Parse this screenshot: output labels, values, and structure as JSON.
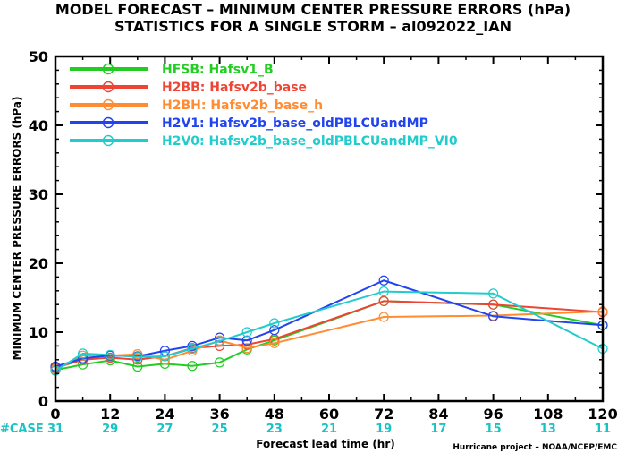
{
  "title_line1": "MODEL FORECAST – MINIMUM CENTER PRESSURE ERRORS (hPa)",
  "title_line2": "STATISTICS FOR A SINGLE STORM – al092022_IAN",
  "case_label": "#CASE",
  "credit": "Hurricane project – NOAA/NCEP/EMC",
  "chart_data": {
    "type": "line",
    "title": "MODEL FORECAST – MINIMUM CENTER PRESSURE ERRORS (hPa)",
    "subtitle": "STATISTICS FOR A SINGLE STORM – al092022_IAN",
    "xlabel": "Forecast lead time (hr)",
    "ylabel": "MINIMUM CENTER PRESSURE ERRORS (hPa)",
    "xlim": [
      0,
      120
    ],
    "ylim": [
      0,
      50
    ],
    "x_ticks": [
      0,
      12,
      24,
      36,
      48,
      60,
      72,
      84,
      96,
      108,
      120
    ],
    "y_ticks": [
      0,
      10,
      20,
      30,
      40,
      50
    ],
    "legend_position": "top-left",
    "case_counts": [
      31,
      29,
      27,
      25,
      23,
      21,
      19,
      17,
      15,
      13,
      11
    ],
    "series": [
      {
        "id": "HFSB",
        "label": "HFSB: Hafsv1_B",
        "color": "#22cc22",
        "x": [
          0,
          6,
          12,
          18,
          24,
          30,
          36,
          42,
          48,
          72,
          96,
          120
        ],
        "y": [
          4.5,
          5.3,
          5.9,
          5.0,
          5.4,
          5.1,
          5.6,
          7.5,
          8.8,
          14.5,
          14.0,
          11.0
        ]
      },
      {
        "id": "H2BB",
        "label": "H2BB: Hafsv2b_base",
        "color": "#ee4433",
        "x": [
          0,
          6,
          12,
          18,
          24,
          30,
          36,
          42,
          48,
          72,
          96,
          120
        ],
        "y": [
          4.8,
          6.0,
          6.3,
          6.0,
          6.5,
          7.7,
          8.0,
          8.2,
          9.0,
          14.5,
          14.0,
          12.9
        ]
      },
      {
        "id": "H2BH",
        "label": "H2BH: Hafsv2b_base_h",
        "color": "#ff8c33",
        "x": [
          0,
          6,
          12,
          18,
          24,
          30,
          36,
          42,
          48,
          72,
          96,
          120
        ],
        "y": [
          4.6,
          6.6,
          6.6,
          6.8,
          6.0,
          7.3,
          8.8,
          7.7,
          8.4,
          12.2,
          12.4,
          13.0
        ]
      },
      {
        "id": "H2V1",
        "label": "H2V1: Hafsv2b_base_oldPBLCUandMP",
        "color": "#2244ee",
        "x": [
          0,
          6,
          12,
          18,
          24,
          30,
          36,
          42,
          48,
          72,
          96,
          120
        ],
        "y": [
          5.0,
          6.2,
          6.6,
          6.5,
          7.3,
          8.0,
          9.2,
          8.8,
          10.3,
          17.5,
          12.3,
          11.0
        ]
      },
      {
        "id": "H2V0",
        "label": "H2V0: Hafsv2b_base_oldPBLCUandMP_VI0",
        "color": "#22cccc",
        "x": [
          0,
          6,
          12,
          18,
          24,
          30,
          36,
          42,
          48,
          72,
          96,
          120
        ],
        "y": [
          4.4,
          6.9,
          6.7,
          6.4,
          6.5,
          7.6,
          8.7,
          10.0,
          11.3,
          15.9,
          15.6,
          7.6
        ]
      }
    ]
  }
}
